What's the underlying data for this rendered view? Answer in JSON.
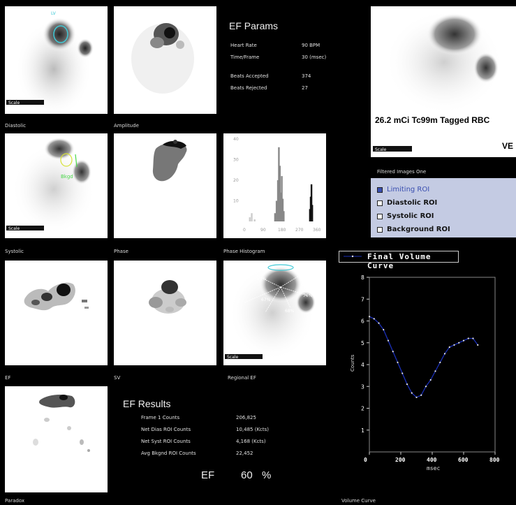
{
  "panels": {
    "diastolic": {
      "caption": "Diastolic",
      "scalebar": "Scale"
    },
    "amplitude": {
      "caption": "Amplitude"
    },
    "systolic": {
      "caption": "Systolic",
      "roi_label": "Bkgd",
      "scalebar": "Scale"
    },
    "phase": {
      "caption": "Phase"
    },
    "phase_histogram": {
      "caption": "Phase Histogram"
    },
    "ef": {
      "caption": "EF"
    },
    "sv": {
      "caption": "SV"
    },
    "regional_ef": {
      "caption": "Regional EF",
      "sectors": [
        "59%",
        "49%",
        "67%",
        "76%",
        "68%"
      ],
      "scalebar": "Scale"
    },
    "paradox": {
      "caption": "Paradox"
    },
    "volume_curve": {
      "caption": "Volume Curve"
    }
  },
  "ef_params": {
    "title": "EF Params",
    "rows": [
      {
        "label": "Heart Rate",
        "value": "90 BPM"
      },
      {
        "label": "Time/Frame",
        "value": "30 (msec)"
      },
      {
        "label": "Beats Accepted",
        "value": "374"
      },
      {
        "label": "Beats Rejected",
        "value": "27"
      }
    ]
  },
  "raw_image": {
    "title": "26.2 mCi Tc99m Tagged RBC",
    "view_label": "VE",
    "scalebar": "Scale"
  },
  "filtered_images": {
    "label": "Filtered Images One",
    "roi_options": [
      {
        "label": "Limiting ROI",
        "checked": true
      },
      {
        "label": "Diastolic ROI",
        "checked": false
      },
      {
        "label": "Systolic ROI",
        "checked": false
      },
      {
        "label": "Background ROI",
        "checked": false
      }
    ]
  },
  "ef_results": {
    "title": "EF Results",
    "rows": [
      {
        "label": "Frame 1 Counts",
        "value": "206,825"
      },
      {
        "label": "Net Dias ROI Counts",
        "value": "10,485 (Kcts)"
      },
      {
        "label": "Net Syst ROI Counts",
        "value": "4,168 (Kcts)"
      },
      {
        "label": "Avg Bkgnd ROI Counts",
        "value": "22,452"
      }
    ],
    "ef_label": "EF",
    "ef_value": "60",
    "ef_unit": "%"
  },
  "histogram": {
    "y_ticks": [
      "40",
      "30",
      "20",
      "10"
    ],
    "x_ticks": [
      "0",
      "90",
      "180",
      "270",
      "360"
    ],
    "chart_data": {
      "type": "bar",
      "x_range": [
        0,
        360
      ],
      "y_range": [
        0,
        40
      ],
      "bars": [
        {
          "x": 20,
          "y": 2
        },
        {
          "x": 30,
          "y": 4
        },
        {
          "x": 45,
          "y": 1
        },
        {
          "x": 150,
          "y": 4
        },
        {
          "x": 158,
          "y": 10
        },
        {
          "x": 165,
          "y": 20
        },
        {
          "x": 170,
          "y": 36
        },
        {
          "x": 175,
          "y": 27
        },
        {
          "x": 180,
          "y": 14
        },
        {
          "x": 185,
          "y": 22
        },
        {
          "x": 190,
          "y": 11
        },
        {
          "x": 195,
          "y": 5
        },
        {
          "x": 330,
          "y": 6
        },
        {
          "x": 334,
          "y": 12
        },
        {
          "x": 338,
          "y": 18
        },
        {
          "x": 342,
          "y": 8
        }
      ]
    }
  },
  "chart_data": {
    "type": "line",
    "title": "Final Volume Curve",
    "xlabel": "msec",
    "ylabel": "Counts",
    "xlim": [
      0,
      800
    ],
    "ylim": [
      0,
      8
    ],
    "x_ticks": [
      "0",
      "200",
      "400",
      "600",
      "800"
    ],
    "y_ticks": [
      "1",
      "2",
      "3",
      "4",
      "5",
      "6",
      "7",
      "8"
    ],
    "series": [
      {
        "name": "Final Volume Curve",
        "x": [
          0,
          30,
          60,
          90,
          120,
          150,
          180,
          210,
          240,
          270,
          300,
          330,
          360,
          390,
          420,
          450,
          480,
          510,
          540,
          570,
          600,
          630,
          660,
          690
        ],
        "y": [
          6.2,
          6.1,
          5.9,
          5.6,
          5.1,
          4.6,
          4.1,
          3.6,
          3.1,
          2.7,
          2.5,
          2.6,
          3.0,
          3.3,
          3.7,
          4.1,
          4.5,
          4.8,
          4.9,
          5.0,
          5.1,
          5.2,
          5.2,
          4.9
        ]
      }
    ],
    "color": "#1a2fb8",
    "grid": false
  }
}
